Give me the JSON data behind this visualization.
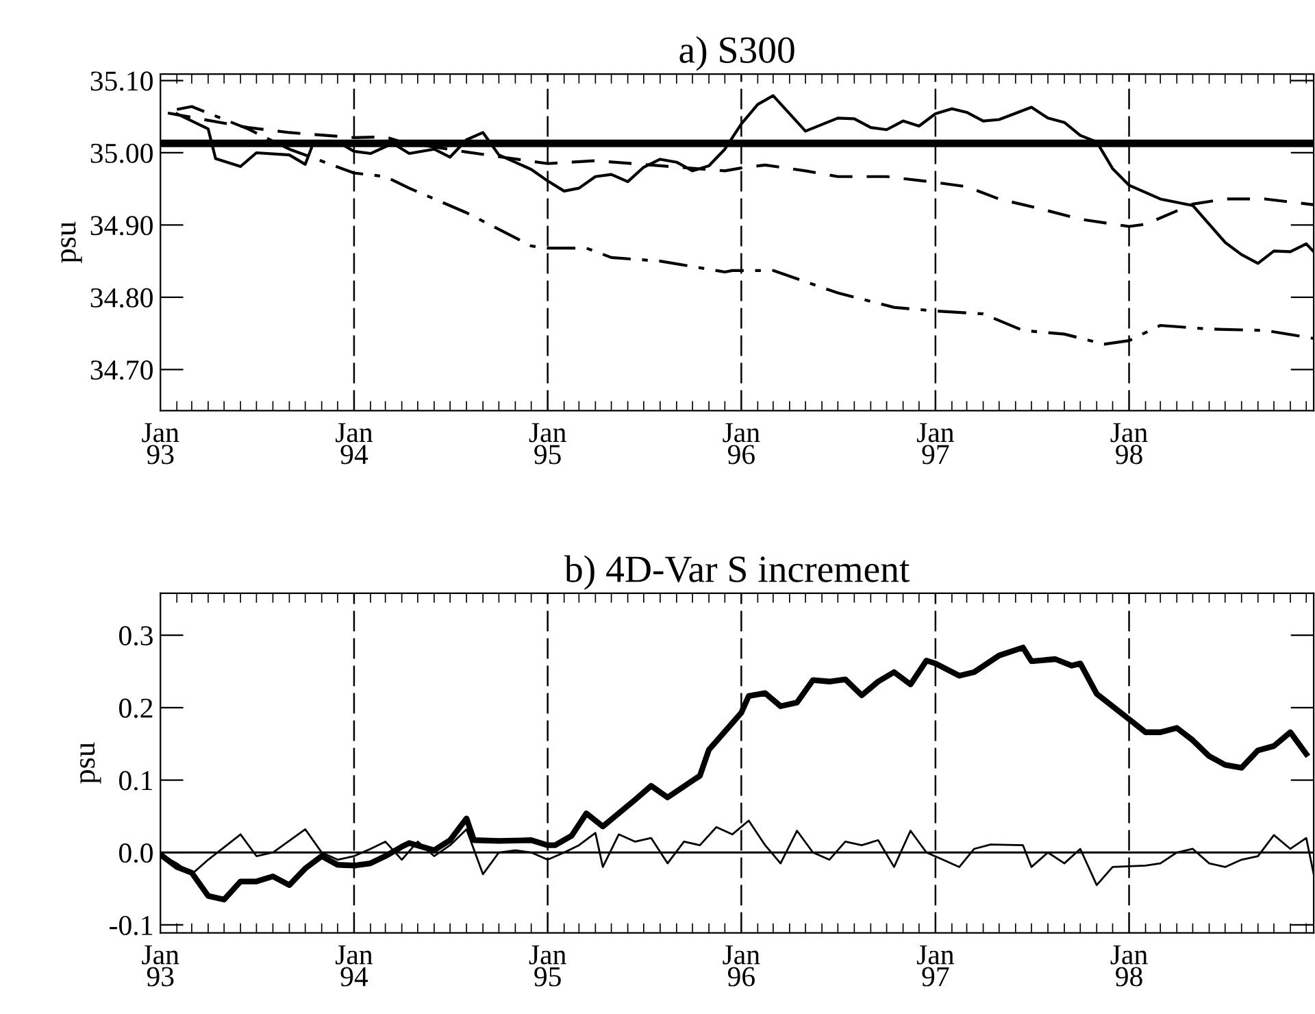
{
  "chart_data": [
    {
      "type": "line",
      "title": "a) S300",
      "ylabel": "psu",
      "xlim": [
        "1993-01-01",
        "1998-12-15"
      ],
      "ylim": [
        34.643,
        35.109
      ],
      "xticks": [
        {
          "value": "1993-01-01",
          "label": "Jan\n93"
        },
        {
          "value": "1994-01-01",
          "label": "Jan\n94"
        },
        {
          "value": "1995-01-01",
          "label": "Jan\n95"
        },
        {
          "value": "1996-01-01",
          "label": "Jan\n96"
        },
        {
          "value": "1997-01-01",
          "label": "Jan\n97"
        },
        {
          "value": "1998-01-01",
          "label": "Jan\n98"
        }
      ],
      "yticks": [
        {
          "value": 34.7,
          "label": "34.70"
        },
        {
          "value": 34.8,
          "label": "34.80"
        },
        {
          "value": 34.9,
          "label": "34.90"
        },
        {
          "value": 35.0,
          "label": "35.00"
        },
        {
          "value": 35.1,
          "label": "35.10"
        }
      ],
      "grid": false,
      "legend": false,
      "ref_lines": [
        {
          "axis": "y",
          "value": 35.013,
          "line_style": "solid",
          "color": "#000000"
        },
        {
          "axis": "x",
          "value": "1994-01-01",
          "line_style": "dashed",
          "color": "#000000"
        },
        {
          "axis": "x",
          "value": "1995-01-01",
          "line_style": "dashed",
          "color": "#000000"
        },
        {
          "axis": "x",
          "value": "1996-01-01",
          "line_style": "dashed",
          "color": "#000000"
        },
        {
          "axis": "x",
          "value": "1997-01-01",
          "line_style": "dashed",
          "color": "#000000"
        },
        {
          "axis": "x",
          "value": "1998-01-01",
          "line_style": "dashed",
          "color": "#000000"
        }
      ],
      "series": [
        {
          "color": "#000000",
          "line_style": "solid",
          "x": [
            "1993-02",
            "1993-04",
            "1993-04-15",
            "1993-06",
            "1993-07",
            "1993-09",
            "1993-10",
            "1993-10-15",
            "1993-12",
            "1994-01",
            "1994-02",
            "1994-03-15",
            "1994-04-15",
            "1994-06",
            "1994-07",
            "1994-08",
            "1994-09",
            "1994-10",
            "1994-12",
            "1995-01",
            "1995-02",
            "1995-03",
            "1995-04",
            "1995-05",
            "1995-06",
            "1995-07",
            "1995-08",
            "1995-09",
            "1995-10",
            "1995-11",
            "1995-12",
            "1996-01",
            "1996-02",
            "1996-03",
            "1996-05",
            "1996-07",
            "1996-08",
            "1996-09",
            "1996-10",
            "1996-11",
            "1996-12",
            "1997-01",
            "1997-02",
            "1997-03",
            "1997-04",
            "1997-05",
            "1997-07",
            "1997-08",
            "1997-09",
            "1997-10",
            "1997-11",
            "1997-12",
            "1998-01",
            "1998-03",
            "1998-05",
            "1998-07",
            "1998-08",
            "1998-09",
            "1998-10",
            "1998-11",
            "1998-12",
            "1998-12-15"
          ],
          "values": [
            35.054,
            35.033,
            34.992,
            34.981,
            35.0,
            34.997,
            34.984,
            35.011,
            35.015,
            35.002,
            34.999,
            35.013,
            34.999,
            35.005,
            34.994,
            35.018,
            35.028,
            34.997,
            34.977,
            34.961,
            34.947,
            34.951,
            34.967,
            34.97,
            34.96,
            34.98,
            34.991,
            34.987,
            34.975,
            34.982,
            35.005,
            35.04,
            35.067,
            35.079,
            35.03,
            35.048,
            35.047,
            35.035,
            35.032,
            35.044,
            35.037,
            35.054,
            35.061,
            35.056,
            35.044,
            35.046,
            35.063,
            35.048,
            35.042,
            35.024,
            35.015,
            34.978,
            34.955,
            34.936,
            34.927,
            34.876,
            34.859,
            34.847,
            34.864,
            34.863,
            34.874,
            34.863
          ]
        },
        {
          "color": "#000000",
          "line_style": "dashed",
          "x": [
            "1993-01-15",
            "1993-06-15",
            "1993-09",
            "1994-01",
            "1994-03",
            "1994-04",
            "1994-08",
            "1995-01",
            "1995-04",
            "1995-08",
            "1995-12",
            "1996-01",
            "1996-02-15",
            "1996-05",
            "1996-07",
            "1996-10",
            "1997-01",
            "1997-03",
            "1997-05",
            "1997-07-15",
            "1997-10",
            "1998-01",
            "1998-02",
            "1998-05",
            "1998-07",
            "1998-09-15",
            "1998-12-15"
          ],
          "values": [
            35.055,
            35.035,
            35.028,
            35.021,
            35.022,
            35.015,
            35.001,
            34.985,
            34.989,
            34.982,
            34.975,
            34.979,
            34.983,
            34.975,
            34.967,
            34.967,
            34.959,
            34.953,
            34.936,
            34.923,
            34.908,
            34.898,
            34.901,
            34.929,
            34.936,
            34.936,
            34.928
          ]
        },
        {
          "color": "#000000",
          "line_style": "dashdot",
          "x": [
            "1993-02",
            "1993-03",
            "1993-06-15",
            "1993-09",
            "1994-01",
            "1994-03",
            "1994-04-15",
            "1994-08",
            "1994-12",
            "1995-01",
            "1995-03-15",
            "1995-05",
            "1995-08",
            "1995-12",
            "1995-12-15",
            "1996-03",
            "1996-07",
            "1996-10-15",
            "1997-01",
            "1997-04",
            "1997-06-15",
            "1997-09",
            "1997-11-15",
            "1998-01",
            "1998-03",
            "1998-06",
            "1998-09-15",
            "1998-12-15"
          ],
          "values": [
            35.06,
            35.064,
            35.033,
            35.005,
            34.972,
            34.967,
            34.951,
            34.917,
            34.871,
            34.868,
            34.868,
            34.855,
            34.85,
            34.835,
            34.837,
            34.837,
            34.806,
            34.786,
            34.781,
            34.777,
            34.754,
            34.749,
            34.735,
            34.74,
            34.761,
            34.756,
            34.754,
            34.743
          ]
        }
      ]
    },
    {
      "type": "line",
      "title": "b) 4D-Var S increment",
      "ylabel": "psu",
      "xlim": [
        "1993-01-01",
        "1998-12-15"
      ],
      "ylim": [
        -0.111,
        0.358
      ],
      "xticks": [
        {
          "value": "1993-01-01",
          "label": "Jan\n93"
        },
        {
          "value": "1994-01-01",
          "label": "Jan\n94"
        },
        {
          "value": "1995-01-01",
          "label": "Jan\n95"
        },
        {
          "value": "1996-01-01",
          "label": "Jan\n96"
        },
        {
          "value": "1997-01-01",
          "label": "Jan\n97"
        },
        {
          "value": "1998-01-01",
          "label": "Jan\n98"
        }
      ],
      "yticks": [
        -0.1,
        {
          "value": 0,
          "label": "0.0"
        },
        0.1,
        0.2,
        0.3
      ],
      "grid": false,
      "legend": false,
      "ref_lines": [
        {
          "axis": "y",
          "value": 0,
          "line_style": "solid",
          "color": "#000000"
        },
        {
          "axis": "x",
          "value": "1994-01-01",
          "line_style": "dashed",
          "color": "#000000"
        },
        {
          "axis": "x",
          "value": "1995-01-01",
          "line_style": "dashed",
          "color": "#000000"
        },
        {
          "axis": "x",
          "value": "1996-01-01",
          "line_style": "dashed",
          "color": "#000000"
        },
        {
          "axis": "x",
          "value": "1997-01-01",
          "line_style": "dashed",
          "color": "#000000"
        },
        {
          "axis": "x",
          "value": "1998-01-01",
          "line_style": "dashed",
          "color": "#000000"
        }
      ],
      "series": [
        {
          "color": "#000000",
          "line_style": "solid",
          "x": [
            "1993-01",
            "1993-02",
            "1993-03",
            "1993-04",
            "1993-05",
            "1993-06",
            "1993-07",
            "1993-08",
            "1993-09",
            "1993-10",
            "1993-11",
            "1993-12",
            "1994-01",
            "1994-02",
            "1994-03",
            "1994-04",
            "1994-04-15",
            "1994-06",
            "1994-07",
            "1994-08",
            "1994-08-15",
            "1994-10",
            "1994-12",
            "1995-01",
            "1995-01-15",
            "1995-02-15",
            "1995-03-15",
            "1995-04-15",
            "1995-06-15",
            "1995-07-15",
            "1995-08-15",
            "1995-10-15",
            "1995-11",
            "1995-12",
            "1996-01",
            "1996-01-15",
            "1996-02-15",
            "1996-03-15",
            "1996-04-15",
            "1996-05-15",
            "1996-06-15",
            "1996-07-15",
            "1996-08-15",
            "1996-09-15",
            "1996-10-15",
            "1996-11-15",
            "1996-12-15",
            "1997-01",
            "1997-02-15",
            "1997-03-15",
            "1997-05",
            "1997-06-15",
            "1997-07",
            "1997-08-15",
            "1997-09-15",
            "1997-10",
            "1997-11",
            "1998-01",
            "1998-02",
            "1998-03",
            "1998-04",
            "1998-05",
            "1998-06",
            "1998-07",
            "1998-08",
            "1998-09",
            "1998-10",
            "1998-11",
            "1998-12"
          ],
          "values": [
            -0.003,
            -0.02,
            -0.028,
            -0.06,
            -0.065,
            -0.04,
            -0.04,
            -0.033,
            -0.045,
            -0.022,
            -0.005,
            -0.017,
            -0.018,
            -0.015,
            -0.005,
            0.008,
            0.013,
            0.003,
            0.017,
            0.047,
            0.017,
            0.016,
            0.017,
            0.01,
            0.01,
            0.023,
            0.054,
            0.036,
            0.073,
            0.092,
            0.076,
            0.106,
            0.142,
            0.167,
            0.193,
            0.216,
            0.22,
            0.202,
            0.207,
            0.238,
            0.236,
            0.239,
            0.217,
            0.236,
            0.249,
            0.232,
            0.265,
            0.261,
            0.244,
            0.249,
            0.272,
            0.283,
            0.264,
            0.267,
            0.258,
            0.261,
            0.219,
            0.184,
            0.166,
            0.166,
            0.172,
            0.155,
            0.133,
            0.121,
            0.117,
            0.141,
            0.147,
            0.166,
            0.136
          ]
        },
        {
          "color": "#000000",
          "line_style": "solid",
          "x": [
            "1993-01",
            "1993-02",
            "1993-03",
            "1993-04",
            "1993-06",
            "1993-07",
            "1993-08",
            "1993-10",
            "1993-11",
            "1993-12",
            "1994-01",
            "1994-02",
            "1994-03",
            "1994-04",
            "1994-05",
            "1994-06",
            "1994-07",
            "1994-08",
            "1994-09",
            "1994-10",
            "1994-11",
            "1994-12",
            "1995-01",
            "1995-02",
            "1995-03",
            "1995-04",
            "1995-04-15",
            "1995-05-15",
            "1995-06-15",
            "1995-07-15",
            "1995-08-15",
            "1995-09-15",
            "1995-10-15",
            "1995-11-15",
            "1995-12-15",
            "1996-01-15",
            "1996-02-15",
            "1996-03-15",
            "1996-04-15",
            "1996-05-15",
            "1996-06-15",
            "1996-07-15",
            "1996-08-15",
            "1996-09-15",
            "1996-10-15",
            "1996-11-15",
            "1996-12-15",
            "1997-01-15",
            "1997-02-15",
            "1997-03-15",
            "1997-04-15",
            "1997-06-15",
            "1997-07",
            "1997-08",
            "1997-09",
            "1997-10",
            "1997-11",
            "1997-12",
            "1998-02",
            "1998-03",
            "1998-04",
            "1998-05",
            "1998-06",
            "1998-07",
            "1998-08",
            "1998-09",
            "1998-10",
            "1998-11",
            "1998-12",
            "1998-12-15"
          ],
          "values": [
            -0.003,
            -0.015,
            -0.03,
            -0.01,
            0.025,
            -0.005,
            0.0,
            0.032,
            0.0,
            -0.01,
            -0.005,
            0.005,
            0.015,
            -0.01,
            0.015,
            -0.005,
            0.01,
            0.032,
            -0.03,
            0.0,
            0.003,
            0.0,
            -0.01,
            0.0,
            0.01,
            0.027,
            -0.02,
            0.025,
            0.015,
            0.02,
            -0.015,
            0.015,
            0.01,
            0.035,
            0.025,
            0.044,
            0.01,
            -0.015,
            0.03,
            0.0,
            -0.01,
            0.015,
            0.01,
            0.017,
            -0.02,
            0.03,
            0.0,
            -0.01,
            -0.02,
            0.005,
            0.011,
            0.01,
            -0.02,
            0.0,
            -0.015,
            0.005,
            -0.045,
            -0.02,
            -0.018,
            -0.015,
            0.0,
            0.005,
            -0.015,
            -0.02,
            -0.01,
            -0.005,
            0.024,
            0.005,
            0.02,
            -0.03
          ]
        }
      ]
    }
  ]
}
